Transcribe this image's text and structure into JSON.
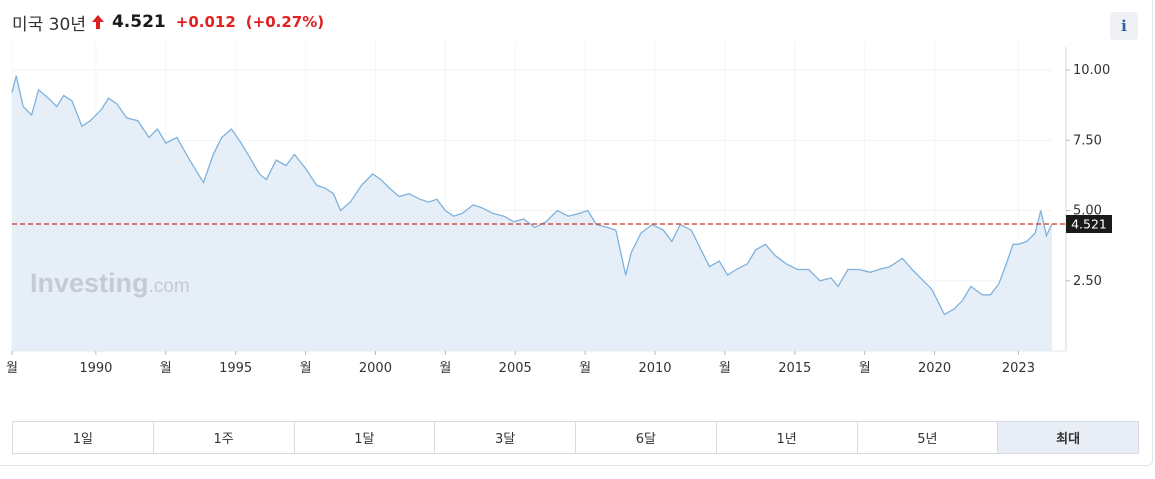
{
  "header": {
    "title": "미국 30년",
    "price": "4.521",
    "change": "+0.012",
    "change_pct": "(+0.27%)",
    "direction_icon": "up-arrow-icon",
    "up_color": "#e02020",
    "info_label": "i"
  },
  "watermark": {
    "brand": "Investing",
    "suffix": ".com"
  },
  "current_price_label": "4.521",
  "tabs": [
    {
      "label": "1일",
      "active": false
    },
    {
      "label": "1주",
      "active": false
    },
    {
      "label": "1달",
      "active": false
    },
    {
      "label": "3달",
      "active": false
    },
    {
      "label": "6달",
      "active": false
    },
    {
      "label": "1년",
      "active": false
    },
    {
      "label": "5년",
      "active": false
    },
    {
      "label": "최대",
      "active": true
    }
  ],
  "chart_data": {
    "type": "area",
    "x_ticks": [
      "월",
      "1990",
      "월",
      "1995",
      "월",
      "2000",
      "월",
      "2005",
      "월",
      "2010",
      "월",
      "2015",
      "월",
      "2020",
      "2023"
    ],
    "y_ticks": [
      "10.00",
      "7.50",
      "5.00",
      "2.50"
    ],
    "ylim": [
      0,
      11
    ],
    "xlim": [
      1987.0,
      2024.2
    ],
    "reference_line": 4.521,
    "line_color": "#7fb2dc",
    "fill_color": "#e6eef7",
    "ref_color": "#c0392b",
    "grid": true,
    "x": [
      1987.0,
      1987.15,
      1987.4,
      1987.7,
      1987.95,
      1988.3,
      1988.6,
      1988.85,
      1989.15,
      1989.5,
      1989.8,
      1990.2,
      1990.45,
      1990.75,
      1991.1,
      1991.5,
      1991.9,
      1992.2,
      1992.5,
      1992.9,
      1993.3,
      1993.6,
      1993.85,
      1994.2,
      1994.5,
      1994.85,
      1995.2,
      1995.5,
      1995.85,
      1996.1,
      1996.45,
      1996.8,
      1997.1,
      1997.5,
      1997.9,
      1998.2,
      1998.5,
      1998.75,
      1999.1,
      1999.5,
      1999.9,
      2000.2,
      2000.5,
      2000.85,
      2001.2,
      2001.6,
      2001.9,
      2002.2,
      2002.5,
      2002.8,
      2003.1,
      2003.5,
      2003.8,
      2004.2,
      2004.6,
      2004.95,
      2005.3,
      2005.7,
      2006.1,
      2006.5,
      2006.9,
      2007.3,
      2007.6,
      2007.9,
      2008.3,
      2008.6,
      2008.95,
      2009.15,
      2009.5,
      2009.9,
      2010.3,
      2010.6,
      2010.9,
      2011.3,
      2011.6,
      2011.95,
      2012.3,
      2012.6,
      2012.9,
      2013.3,
      2013.6,
      2013.95,
      2014.3,
      2014.7,
      2015.1,
      2015.5,
      2015.9,
      2016.3,
      2016.55,
      2016.9,
      2017.3,
      2017.7,
      2018.0,
      2018.4,
      2018.85,
      2019.2,
      2019.6,
      2019.9,
      2020.2,
      2020.35,
      2020.7,
      2021.0,
      2021.3,
      2021.7,
      2022.0,
      2022.3,
      2022.6,
      2022.8,
      2023.0,
      2023.3,
      2023.6,
      2023.8,
      2024.0,
      2024.2
    ],
    "values": [
      9.2,
      9.8,
      8.7,
      8.4,
      9.3,
      9.0,
      8.7,
      9.1,
      8.9,
      8.0,
      8.2,
      8.6,
      9.0,
      8.8,
      8.3,
      8.2,
      7.6,
      7.9,
      7.4,
      7.6,
      6.9,
      6.4,
      6.0,
      7.0,
      7.6,
      7.9,
      7.4,
      6.9,
      6.3,
      6.1,
      6.8,
      6.6,
      7.0,
      6.5,
      5.9,
      5.8,
      5.6,
      5.0,
      5.3,
      5.9,
      6.3,
      6.1,
      5.8,
      5.5,
      5.6,
      5.4,
      5.3,
      5.4,
      5.0,
      4.8,
      4.9,
      5.2,
      5.1,
      4.9,
      4.8,
      4.6,
      4.7,
      4.4,
      4.6,
      5.0,
      4.8,
      4.9,
      5.0,
      4.5,
      4.4,
      4.3,
      2.7,
      3.5,
      4.2,
      4.5,
      4.3,
      3.9,
      4.5,
      4.3,
      3.7,
      3.0,
      3.2,
      2.7,
      2.9,
      3.1,
      3.6,
      3.8,
      3.4,
      3.1,
      2.9,
      2.9,
      2.5,
      2.6,
      2.3,
      2.9,
      2.9,
      2.8,
      2.9,
      3.0,
      3.3,
      2.9,
      2.5,
      2.2,
      1.6,
      1.3,
      1.5,
      1.8,
      2.3,
      2.0,
      2.0,
      2.4,
      3.2,
      3.8,
      3.8,
      3.9,
      4.2,
      5.0,
      4.1,
      4.521
    ]
  }
}
